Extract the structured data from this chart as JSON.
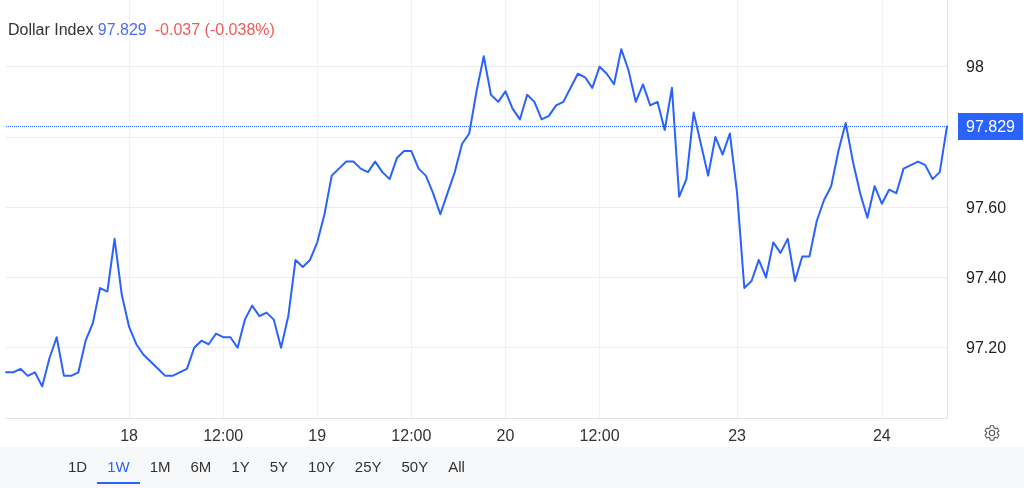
{
  "chart_data": {
    "type": "line",
    "title": "Dollar Index",
    "subtitle": "97.829 -0.037 (-0.038%)",
    "categories": [
      null,
      null,
      null,
      null,
      null,
      null,
      null,
      null,
      null,
      null,
      null,
      null,
      null,
      null,
      null,
      null,
      null,
      "18",
      null,
      null,
      null,
      null,
      null,
      null,
      null,
      null,
      null,
      null,
      null,
      null,
      "12:00",
      null,
      null,
      null,
      null,
      null,
      null,
      null,
      null,
      null,
      null,
      null,
      null,
      "19",
      null,
      null,
      null,
      null,
      null,
      null,
      null,
      null,
      null,
      null,
      null,
      null,
      "12:00",
      null,
      null,
      null,
      null,
      null,
      null,
      null,
      null,
      null,
      null,
      null,
      null,
      "20",
      null,
      null,
      null,
      null,
      null,
      null,
      null,
      null,
      null,
      null,
      null,
      null,
      "12:00",
      null,
      null,
      null,
      null,
      null,
      null,
      null,
      null,
      null,
      null,
      null,
      null,
      null,
      null,
      null,
      null,
      null,
      null,
      "23",
      null,
      null,
      null,
      null,
      null,
      null,
      null,
      null,
      null,
      null,
      null,
      null,
      null,
      null,
      null,
      null,
      null,
      null,
      null,
      "24",
      null,
      null,
      null,
      null,
      null,
      null,
      null,
      null,
      null
    ],
    "series": [
      {
        "color": "#2962ff",
        "values": [
          97.13,
          97.13,
          97.14,
          97.12,
          97.13,
          97.09,
          97.17,
          97.23,
          97.12,
          97.12,
          97.13,
          97.22,
          97.27,
          97.37,
          97.36,
          97.51,
          97.35,
          97.26,
          97.21,
          97.18,
          97.16,
          97.14,
          97.12,
          97.12,
          97.13,
          97.14,
          97.2,
          97.22,
          97.21,
          97.24,
          97.23,
          97.23,
          97.2,
          97.28,
          97.32,
          97.29,
          97.3,
          97.28,
          97.2,
          97.29,
          97.45,
          97.43,
          97.45,
          97.5,
          97.58,
          97.69,
          97.71,
          97.73,
          97.73,
          97.71,
          97.7,
          97.73,
          97.7,
          97.68,
          97.74,
          97.76,
          97.76,
          97.71,
          97.69,
          97.64,
          97.58,
          97.64,
          97.7,
          97.78,
          97.81,
          97.93,
          98.03,
          97.92,
          97.9,
          97.93,
          97.88,
          97.85,
          97.92,
          97.9,
          97.85,
          97.86,
          97.89,
          97.9,
          97.94,
          97.98,
          97.97,
          97.94,
          98.0,
          97.98,
          97.95,
          98.05,
          97.99,
          97.9,
          97.95,
          97.89,
          97.9,
          97.82,
          97.94,
          97.63,
          97.68,
          97.87,
          97.78,
          97.69,
          97.8,
          97.75,
          97.81,
          97.64,
          97.37,
          97.39,
          97.45,
          97.4,
          97.5,
          97.47,
          97.51,
          97.39,
          97.46,
          97.46,
          97.56,
          97.62,
          97.66,
          97.76,
          97.84,
          97.73,
          97.64,
          97.57,
          97.66,
          97.61,
          97.65,
          97.64,
          97.71,
          97.72,
          97.73,
          97.72,
          97.68,
          97.7,
          97.83
        ]
      }
    ],
    "ylim": [
      97,
      98.19
    ],
    "yticks": [
      {
        "value": 97.2,
        "label": "97.20"
      },
      {
        "value": 97.4,
        "label": "97.40"
      },
      {
        "value": 97.6,
        "label": "97.60"
      },
      {
        "value": 97.8,
        "label": null
      },
      98
    ],
    "grid": true,
    "marker": "none",
    "line_style": "solid",
    "ref_lines": [
      {
        "axis": "y",
        "value": 97.829,
        "label": "97.829",
        "color": "#2962ff",
        "line_style": "dotted"
      }
    ],
    "annotations": [
      "1D",
      "1W",
      "1M",
      "6M",
      "1Y",
      "5Y",
      "10Y",
      "25Y",
      "50Y",
      "All"
    ]
  }
}
